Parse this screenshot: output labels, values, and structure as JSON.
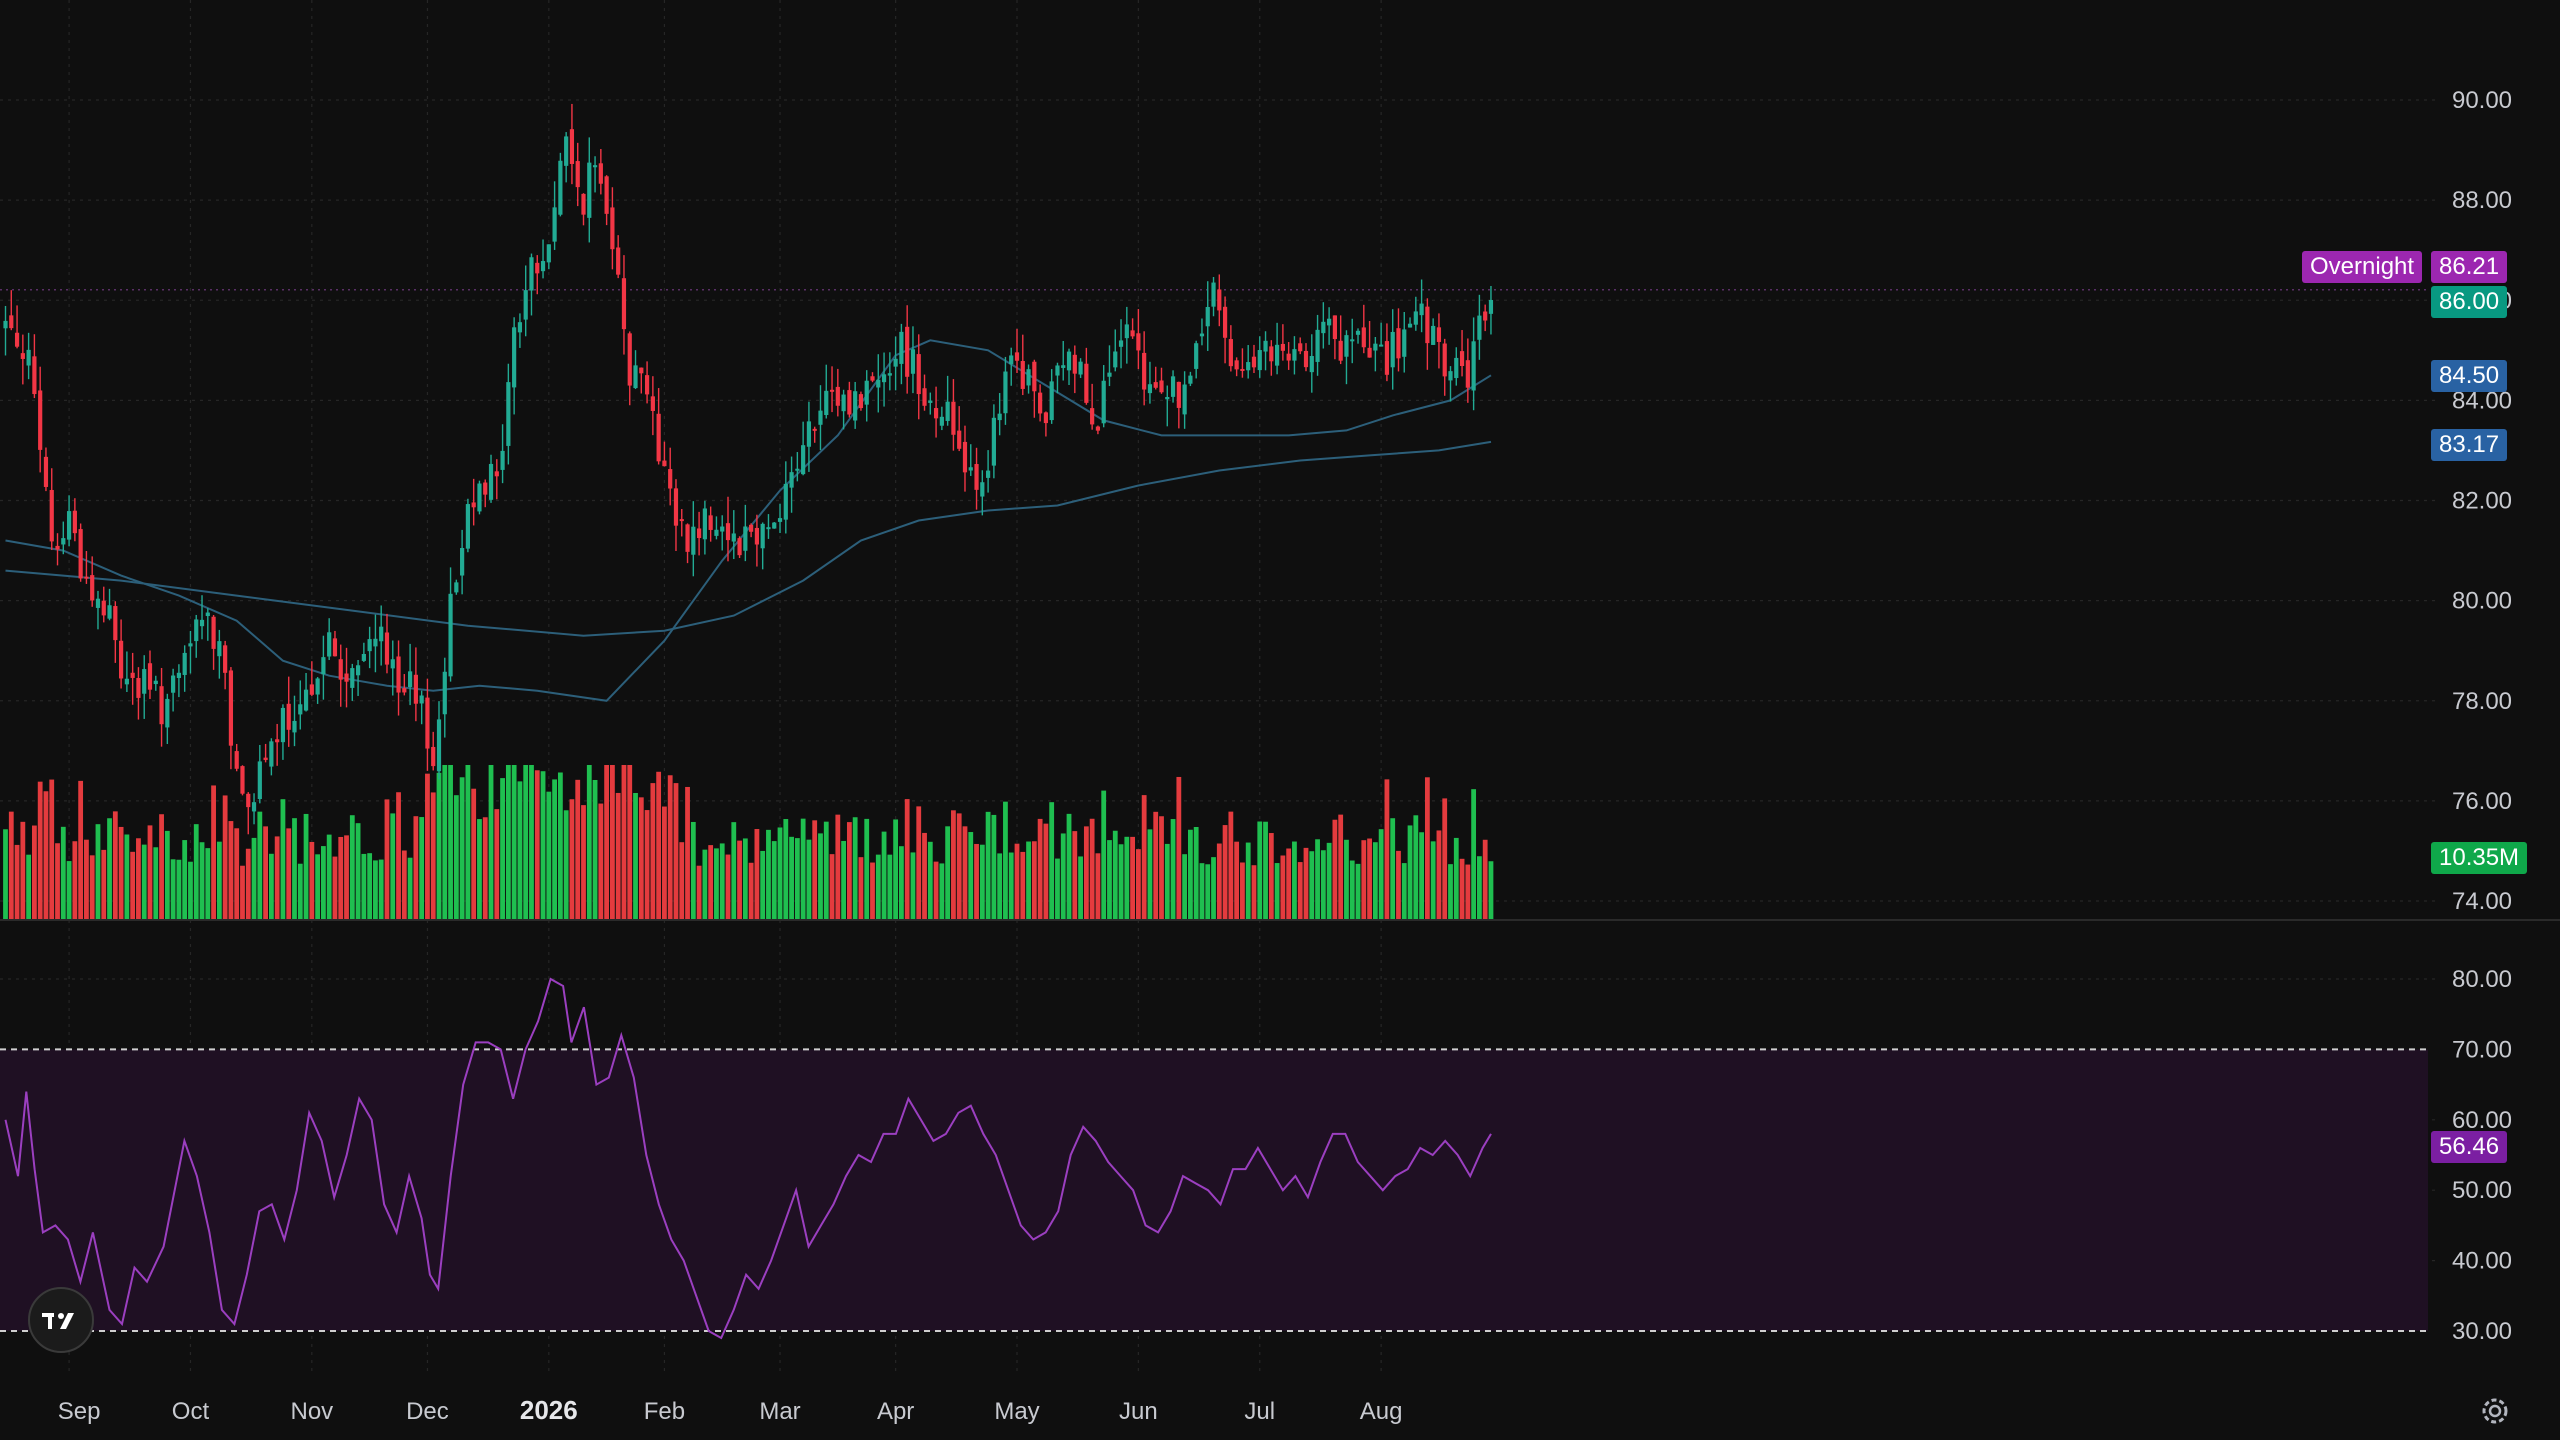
{
  "chart_data": {
    "type": "candlestick",
    "price_axis": {
      "ticks": [
        "90.00",
        "88.00",
        "86.00",
        "84.00",
        "82.00",
        "80.00",
        "78.00",
        "76.00",
        "74.00"
      ],
      "values": [
        90,
        88,
        86,
        84,
        82,
        80,
        78,
        76,
        74
      ],
      "range": [
        73.4,
        91.2
      ]
    },
    "rsi_axis": {
      "ticks": [
        "80.00",
        "70.00",
        "60.00",
        "50.00",
        "40.00",
        "30.00"
      ],
      "values": [
        80,
        70,
        60,
        50,
        40,
        30
      ],
      "range": [
        26.3,
        83.8
      ],
      "band": [
        30,
        70
      ]
    },
    "x_labels": [
      "Sep",
      "Oct",
      "Nov",
      "Dec",
      "2026",
      "Feb",
      "Mar",
      "Apr",
      "May",
      "Jun",
      "Jul",
      "Aug"
    ],
    "x_label_bar_index": [
      11,
      32,
      53,
      73,
      94,
      114,
      134,
      154,
      175,
      196,
      217,
      238
    ],
    "bar_count": 258,
    "last_bar_index": 257,
    "close_path": [
      [
        0,
        85.5
      ],
      [
        5,
        85.2
      ],
      [
        8,
        83.0
      ],
      [
        12,
        80.8
      ],
      [
        15,
        81.8
      ],
      [
        20,
        80.2
      ],
      [
        25,
        79.6
      ],
      [
        27,
        78.8
      ],
      [
        30,
        78.4
      ],
      [
        34,
        78.2
      ],
      [
        38,
        77.9
      ],
      [
        42,
        78.3
      ],
      [
        46,
        79.6
      ],
      [
        50,
        79.4
      ],
      [
        53,
        78.8
      ],
      [
        55,
        76.2
      ],
      [
        58,
        76.2
      ],
      [
        62,
        76.4
      ],
      [
        66,
        77.6
      ],
      [
        70,
        77.2
      ],
      [
        74,
        78.7
      ],
      [
        78,
        79.1
      ],
      [
        82,
        78.3
      ],
      [
        86,
        78.7
      ],
      [
        90,
        79.7
      ],
      [
        94,
        78.0
      ],
      [
        97,
        78.2
      ],
      [
        99,
        77.7
      ],
      [
        101,
        77.7
      ],
      [
        103,
        76.5
      ],
      [
        105,
        78.6
      ],
      [
        110,
        81.5
      ],
      [
        114,
        82.7
      ],
      [
        118,
        82.2
      ],
      [
        122,
        85.1
      ],
      [
        126,
        86.7
      ],
      [
        130,
        86.7
      ],
      [
        134,
        89.3
      ],
      [
        138,
        88.0
      ],
      [
        142,
        88.6
      ],
      [
        147,
        87.1
      ],
      [
        150,
        84.6
      ],
      [
        155,
        84.4
      ],
      [
        157,
        82.8
      ],
      [
        162,
        81.5
      ],
      [
        165,
        81.3
      ],
      [
        170,
        81.8
      ],
      [
        175,
        81.3
      ],
      [
        180,
        81.4
      ],
      [
        185,
        81.7
      ],
      [
        190,
        82.7
      ],
      [
        195,
        83.6
      ],
      [
        200,
        84.0
      ],
      [
        205,
        84.0
      ],
      [
        210,
        84.6
      ],
      [
        214,
        85.1
      ],
      [
        218,
        84.8
      ],
      [
        222,
        84.0
      ],
      [
        226,
        83.8
      ],
      [
        230,
        83.0
      ],
      [
        234,
        82.4
      ],
      [
        238,
        83.4
      ],
      [
        242,
        84.8
      ],
      [
        246,
        84.3
      ],
      [
        250,
        83.6
      ],
      [
        254,
        84.8
      ],
      [
        258,
        84.7
      ],
      [
        262,
        83.7
      ],
      [
        266,
        84.7
      ],
      [
        270,
        85.2
      ],
      [
        274,
        84.1
      ],
      [
        278,
        84.4
      ],
      [
        282,
        84.1
      ],
      [
        286,
        84.7
      ],
      [
        290,
        86.4
      ],
      [
        294,
        84.6
      ],
      [
        298,
        85.1
      ],
      [
        302,
        84.7
      ],
      [
        306,
        84.9
      ],
      [
        310,
        84.6
      ],
      [
        312,
        84.9
      ],
      [
        316,
        85.8
      ],
      [
        320,
        84.9
      ],
      [
        324,
        85.2
      ],
      [
        328,
        84.9
      ],
      [
        333,
        84.9
      ],
      [
        340,
        85.6
      ],
      [
        345,
        84.7
      ],
      [
        352,
        84.5
      ],
      [
        356,
        85.9
      ]
    ],
    "ma_short": {
      "last": 84.5,
      "path": [
        [
          0,
          81.2
        ],
        [
          10,
          81.0
        ],
        [
          20,
          80.5
        ],
        [
          30,
          80.1
        ],
        [
          40,
          79.6
        ],
        [
          48,
          78.8
        ],
        [
          56,
          78.5
        ],
        [
          66,
          78.3
        ],
        [
          74,
          78.2
        ],
        [
          82,
          78.3
        ],
        [
          92,
          78.2
        ],
        [
          104,
          78.0
        ],
        [
          114,
          79.2
        ],
        [
          124,
          80.8
        ],
        [
          134,
          82.2
        ],
        [
          144,
          83.3
        ],
        [
          154,
          84.9
        ],
        [
          160,
          85.2
        ],
        [
          170,
          85.0
        ],
        [
          180,
          84.3
        ],
        [
          190,
          83.6
        ],
        [
          200,
          83.3
        ],
        [
          212,
          83.3
        ],
        [
          222,
          83.3
        ],
        [
          232,
          83.4
        ],
        [
          240,
          83.7
        ],
        [
          250,
          84.0
        ],
        [
          257,
          84.5
        ]
      ]
    },
    "ma_long": {
      "last": 83.17,
      "path": [
        [
          0,
          80.6
        ],
        [
          20,
          80.4
        ],
        [
          40,
          80.1
        ],
        [
          60,
          79.8
        ],
        [
          80,
          79.5
        ],
        [
          100,
          79.3
        ],
        [
          114,
          79.4
        ],
        [
          126,
          79.7
        ],
        [
          138,
          80.4
        ],
        [
          148,
          81.2
        ],
        [
          158,
          81.6
        ],
        [
          170,
          81.8
        ],
        [
          182,
          81.9
        ],
        [
          196,
          82.3
        ],
        [
          210,
          82.6
        ],
        [
          224,
          82.8
        ],
        [
          236,
          82.9
        ],
        [
          248,
          83.0
        ],
        [
          257,
          83.17
        ]
      ]
    },
    "rsi_path": [
      [
        0,
        60
      ],
      [
        3,
        52
      ],
      [
        5,
        64
      ],
      [
        7,
        53
      ],
      [
        9,
        44
      ],
      [
        12,
        45
      ],
      [
        15,
        43
      ],
      [
        18,
        37
      ],
      [
        21,
        44
      ],
      [
        25,
        33
      ],
      [
        28,
        31
      ],
      [
        31,
        39
      ],
      [
        34,
        37
      ],
      [
        38,
        42
      ],
      [
        40,
        48
      ],
      [
        43,
        57
      ],
      [
        46,
        52
      ],
      [
        49,
        44
      ],
      [
        52,
        33
      ],
      [
        55,
        31
      ],
      [
        58,
        38
      ],
      [
        61,
        47
      ],
      [
        64,
        48
      ],
      [
        67,
        43
      ],
      [
        70,
        50
      ],
      [
        73,
        61
      ],
      [
        76,
        57
      ],
      [
        79,
        49
      ],
      [
        82,
        55
      ],
      [
        85,
        63
      ],
      [
        88,
        60
      ],
      [
        91,
        48
      ],
      [
        94,
        44
      ],
      [
        97,
        52
      ],
      [
        100,
        46
      ],
      [
        102,
        38
      ],
      [
        104,
        36
      ],
      [
        107,
        52
      ],
      [
        110,
        65
      ],
      [
        113,
        71
      ],
      [
        116,
        71
      ],
      [
        119,
        70
      ],
      [
        122,
        63
      ],
      [
        125,
        70
      ],
      [
        128,
        74
      ],
      [
        131,
        80
      ],
      [
        134,
        79
      ],
      [
        136,
        71
      ],
      [
        139,
        76
      ],
      [
        142,
        65
      ],
      [
        145,
        66
      ],
      [
        148,
        72
      ],
      [
        151,
        66
      ],
      [
        154,
        55
      ],
      [
        157,
        48
      ],
      [
        160,
        43
      ],
      [
        163,
        40
      ],
      [
        166,
        35
      ],
      [
        169,
        30
      ],
      [
        172,
        29
      ],
      [
        175,
        33
      ],
      [
        178,
        38
      ],
      [
        181,
        36
      ],
      [
        184,
        40
      ],
      [
        187,
        45
      ],
      [
        190,
        50
      ],
      [
        193,
        42
      ],
      [
        196,
        45
      ],
      [
        199,
        48
      ],
      [
        202,
        52
      ],
      [
        205,
        55
      ],
      [
        208,
        54
      ],
      [
        211,
        58
      ],
      [
        214,
        58
      ],
      [
        217,
        63
      ],
      [
        220,
        60
      ],
      [
        223,
        57
      ],
      [
        226,
        58
      ],
      [
        229,
        61
      ],
      [
        232,
        62
      ],
      [
        235,
        58
      ],
      [
        238,
        55
      ],
      [
        241,
        50
      ],
      [
        244,
        45
      ],
      [
        247,
        43
      ],
      [
        250,
        44
      ],
      [
        253,
        47
      ],
      [
        256,
        55
      ],
      [
        259,
        59
      ],
      [
        262,
        57
      ],
      [
        265,
        54
      ],
      [
        268,
        52
      ],
      [
        271,
        50
      ],
      [
        274,
        45
      ],
      [
        277,
        44
      ],
      [
        280,
        47
      ],
      [
        283,
        52
      ],
      [
        286,
        51
      ],
      [
        289,
        50
      ],
      [
        292,
        48
      ],
      [
        295,
        53
      ],
      [
        298,
        53
      ],
      [
        301,
        56
      ],
      [
        304,
        53
      ],
      [
        307,
        50
      ],
      [
        310,
        52
      ],
      [
        313,
        49
      ],
      [
        316,
        54
      ],
      [
        319,
        58
      ],
      [
        322,
        58
      ],
      [
        325,
        54
      ],
      [
        328,
        52
      ],
      [
        331,
        50
      ],
      [
        334,
        52
      ],
      [
        337,
        53
      ],
      [
        340,
        56
      ],
      [
        343,
        55
      ],
      [
        346,
        57
      ],
      [
        349,
        55
      ],
      [
        352,
        52
      ],
      [
        355,
        56
      ],
      [
        357,
        58
      ]
    ],
    "volume_last": "10.35M",
    "price_tags": {
      "overnight_label": "Overnight",
      "overnight": "86.21",
      "last": "86.00",
      "ma_short": "84.50",
      "ma_long": "83.17",
      "volume": "10.35M",
      "rsi": "56.46"
    },
    "colors": {
      "up": "#22ab94",
      "down": "#f23645",
      "vol_up": "#1fbf50",
      "vol_down": "#e43b3e",
      "ma": "#2c5f7a",
      "rsi": "#9b3fc0",
      "rsi_band": "#1f1023",
      "overnight": "#9c27b0",
      "last_tag": "#089981",
      "ma_tag": "#2962a3",
      "volume_tag": "#0fa84a",
      "rsi_tag": "#7b1fa2"
    },
    "grid": true,
    "legend": "none"
  }
}
